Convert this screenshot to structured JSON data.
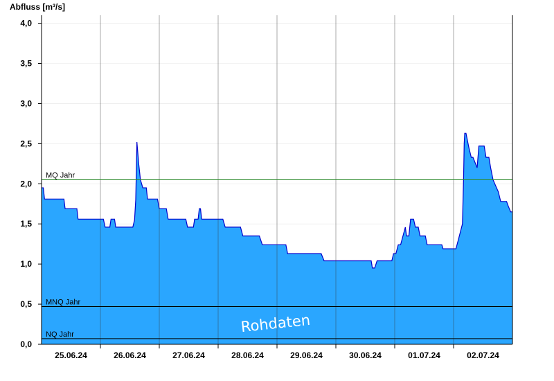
{
  "chart_data": {
    "type": "area",
    "ylabel": "Abfluss [m³/s]",
    "ylim": [
      0,
      4.1
    ],
    "yticks": [
      "0,0",
      "0,5",
      "1,0",
      "1,5",
      "2,0",
      "2,5",
      "3,0",
      "3,5",
      "4,0"
    ],
    "ytick_values": [
      0,
      0.5,
      1.0,
      1.5,
      2.0,
      2.5,
      3.0,
      3.5,
      4.0
    ],
    "xlim": [
      0,
      8
    ],
    "day_labels": [
      "25.06.24",
      "26.06.24",
      "27.06.24",
      "28.06.24",
      "29.06.24",
      "30.06.24",
      "01.07.24",
      "02.07.24"
    ],
    "grid": "vertical lines at day boundaries",
    "colors": {
      "fill": "#2aa6ff",
      "line": "#0000cc",
      "mq": "#2e8b2e",
      "reference": "#000000"
    },
    "reference_lines": [
      {
        "label": "MQ Jahr",
        "value": 2.05,
        "color": "#2e8b2e"
      },
      {
        "label": "MNQ Jahr",
        "value": 0.47,
        "color": "#000000"
      },
      {
        "label": "NQ Jahr",
        "value": 0.07,
        "color": "#000000"
      }
    ],
    "series": [
      {
        "x": [
          0,
          0.03,
          0.05,
          0.38,
          0.4,
          0.6,
          0.62,
          1.05,
          1.08,
          1.16,
          1.18,
          1.24,
          1.26,
          1.55,
          1.58,
          1.6,
          1.62,
          1.65,
          1.68,
          1.72,
          1.78,
          1.8,
          1.85,
          1.97,
          2.0,
          2.12,
          2.15,
          2.45,
          2.48,
          2.58,
          2.6,
          2.66,
          2.68,
          2.7,
          2.72,
          2.76,
          2.78,
          3.08,
          3.12,
          3.38,
          3.42,
          3.7,
          3.75,
          4.15,
          4.18,
          4.75,
          4.8,
          5.6,
          5.62,
          5.66,
          5.7,
          5.95,
          5.98,
          6.02,
          6.06,
          6.1,
          6.14,
          6.18,
          6.2,
          6.24,
          6.27,
          6.32,
          6.35,
          6.4,
          6.43,
          6.52,
          6.55,
          6.65,
          6.68,
          6.8,
          6.82,
          7.04,
          7.08,
          7.15,
          7.17,
          7.18,
          7.19,
          7.21,
          7.26,
          7.3,
          7.33,
          7.4,
          7.43,
          7.52,
          7.55,
          7.6,
          7.63,
          7.67,
          7.7,
          7.76,
          7.8,
          7.9,
          7.93,
          7.97,
          8.0
        ],
        "y": [
          1.95,
          1.95,
          1.81,
          1.81,
          1.69,
          1.69,
          1.56,
          1.56,
          1.46,
          1.46,
          1.56,
          1.56,
          1.46,
          1.46,
          1.55,
          1.8,
          2.52,
          2.25,
          2.05,
          1.95,
          1.95,
          1.81,
          1.81,
          1.81,
          1.69,
          1.69,
          1.56,
          1.56,
          1.46,
          1.46,
          1.56,
          1.56,
          1.69,
          1.69,
          1.56,
          1.56,
          1.56,
          1.56,
          1.46,
          1.46,
          1.35,
          1.35,
          1.24,
          1.24,
          1.13,
          1.13,
          1.04,
          1.04,
          0.95,
          0.95,
          1.04,
          1.04,
          1.13,
          1.13,
          1.24,
          1.24,
          1.35,
          1.46,
          1.35,
          1.35,
          1.56,
          1.56,
          1.46,
          1.46,
          1.35,
          1.35,
          1.24,
          1.24,
          1.24,
          1.24,
          1.19,
          1.19,
          1.3,
          1.5,
          2.1,
          2.5,
          2.63,
          2.63,
          2.45,
          2.33,
          2.33,
          2.2,
          2.47,
          2.47,
          2.33,
          2.33,
          2.2,
          2.05,
          2.0,
          1.9,
          1.78,
          1.78,
          1.72,
          1.65,
          1.65
        ]
      }
    ]
  },
  "watermark_text": "Rohdaten"
}
